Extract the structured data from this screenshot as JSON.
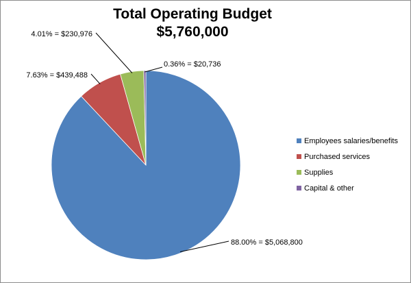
{
  "chart_data": {
    "type": "pie",
    "title": "Total Operating Budget",
    "subtitle": "$5,760,000",
    "start_angle_deg": 0,
    "direction": "clockwise",
    "legend_position": "right",
    "slices": [
      {
        "name": "Employees salaries/benefits",
        "percent": 88.0,
        "value": 5068800,
        "label": "88.00%  = $5,068,800",
        "color": "#4F81BD"
      },
      {
        "name": "Purchased services",
        "percent": 7.63,
        "value": 439488,
        "label": "7.63% = $439,488",
        "color": "#C0504D"
      },
      {
        "name": "Supplies",
        "percent": 4.01,
        "value": 230976,
        "label": "4.01% = $230,976",
        "color": "#9BBB59"
      },
      {
        "name": "Capital & other",
        "percent": 0.36,
        "value": 20736,
        "label": "0.36% = $20,736",
        "color": "#8064A2"
      }
    ]
  }
}
